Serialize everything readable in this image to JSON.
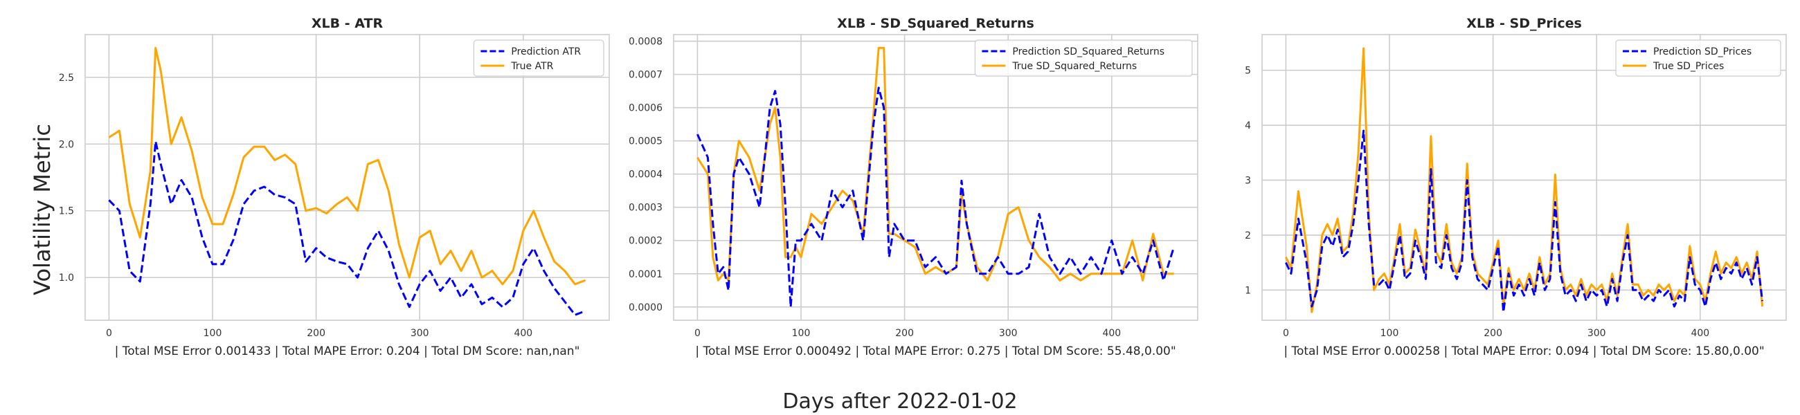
{
  "figure": {
    "ylabel": "Volatility Metric",
    "xlabel": "Days after 2022-01-02"
  },
  "colors": {
    "prediction": "#0000ff",
    "true": "#ffa500"
  },
  "chart_data": [
    {
      "type": "line",
      "title": "XLB - ATR",
      "xlabel": "| Total MSE Error 0.001433 | Total MAPE Error: 0.204 | Total DM Score: nan,nan\"",
      "xlim": [
        -23,
        483
      ],
      "ylim": [
        0.68,
        2.82
      ],
      "xticks": [
        0,
        100,
        200,
        300,
        400
      ],
      "yticks": [
        1.0,
        1.5,
        2.0,
        2.5
      ],
      "ytick_labels": [
        "1.0",
        "1.5",
        "2.0",
        "2.5"
      ],
      "grid": true,
      "legend_position": "top-right",
      "x": [
        0,
        10,
        20,
        30,
        40,
        45,
        50,
        60,
        70,
        80,
        90,
        100,
        110,
        120,
        130,
        140,
        150,
        160,
        170,
        180,
        190,
        200,
        210,
        220,
        230,
        240,
        250,
        260,
        270,
        280,
        290,
        300,
        310,
        320,
        330,
        340,
        350,
        360,
        370,
        380,
        390,
        400,
        410,
        420,
        430,
        440,
        450,
        460
      ],
      "series": [
        {
          "name": "Prediction ATR",
          "style": "dashed",
          "color": "#0000ff",
          "values": [
            1.58,
            1.5,
            1.05,
            0.97,
            1.55,
            2.02,
            1.85,
            1.55,
            1.73,
            1.6,
            1.3,
            1.1,
            1.1,
            1.28,
            1.55,
            1.65,
            1.68,
            1.62,
            1.6,
            1.55,
            1.12,
            1.22,
            1.15,
            1.12,
            1.1,
            1.0,
            1.22,
            1.35,
            1.2,
            0.95,
            0.78,
            0.95,
            1.05,
            0.9,
            1.0,
            0.85,
            0.95,
            0.8,
            0.85,
            0.78,
            0.85,
            1.1,
            1.22,
            1.05,
            0.92,
            0.82,
            0.72,
            0.75
          ]
        },
        {
          "name": "True ATR",
          "style": "solid",
          "color": "#ffa500",
          "values": [
            2.05,
            2.1,
            1.55,
            1.3,
            1.8,
            2.72,
            2.55,
            2.0,
            2.2,
            1.95,
            1.6,
            1.4,
            1.4,
            1.62,
            1.9,
            1.98,
            1.98,
            1.88,
            1.92,
            1.85,
            1.5,
            1.52,
            1.48,
            1.55,
            1.6,
            1.5,
            1.85,
            1.88,
            1.65,
            1.25,
            1.0,
            1.3,
            1.35,
            1.1,
            1.2,
            1.05,
            1.2,
            1.0,
            1.05,
            0.95,
            1.05,
            1.35,
            1.5,
            1.3,
            1.12,
            1.05,
            0.95,
            0.98
          ]
        }
      ]
    },
    {
      "type": "line",
      "title": "XLB - SD_Squared_Returns",
      "xlabel": "| Total MSE Error 0.000492 | Total MAPE Error: 0.275 | Total DM Score: 55.48,0.00\"",
      "xlim": [
        -23,
        483
      ],
      "ylim": [
        -4e-05,
        0.00082
      ],
      "xticks": [
        0,
        100,
        200,
        300,
        400
      ],
      "yticks": [
        0.0,
        0.0001,
        0.0002,
        0.0003,
        0.0004,
        0.0005,
        0.0006,
        0.0007,
        0.0008
      ],
      "ytick_labels": [
        "0.0000",
        "0.0001",
        "0.0002",
        "0.0003",
        "0.0004",
        "0.0005",
        "0.0006",
        "0.0007",
        "0.0008"
      ],
      "grid": true,
      "legend_position": "top-right",
      "x": [
        0,
        10,
        15,
        20,
        25,
        30,
        35,
        40,
        50,
        60,
        70,
        75,
        80,
        85,
        90,
        95,
        100,
        110,
        120,
        130,
        140,
        150,
        160,
        170,
        175,
        180,
        185,
        190,
        200,
        210,
        220,
        230,
        240,
        250,
        255,
        260,
        270,
        280,
        290,
        300,
        310,
        320,
        330,
        340,
        350,
        360,
        370,
        380,
        390,
        400,
        410,
        420,
        430,
        440,
        450,
        460
      ],
      "series": [
        {
          "name": "Prediction SD_Squared_Returns",
          "style": "dashed",
          "color": "#0000ff",
          "values": [
            0.00052,
            0.00045,
            0.00025,
            0.0001,
            0.00012,
            5e-05,
            0.0004,
            0.00045,
            0.0004,
            0.0003,
            0.0006,
            0.00065,
            0.00055,
            0.0003,
            0.0,
            0.0002,
            0.0002,
            0.00025,
            0.0002,
            0.00035,
            0.0003,
            0.00035,
            0.0002,
            0.00055,
            0.00066,
            0.0006,
            0.00015,
            0.00025,
            0.0002,
            0.0002,
            0.00012,
            0.00015,
            0.0001,
            0.00012,
            0.00038,
            0.00025,
            0.0001,
            0.0001,
            0.00015,
            0.0001,
            0.0001,
            0.00012,
            0.00028,
            0.00015,
            0.0001,
            0.00015,
            0.0001,
            0.00015,
            0.0001,
            0.0002,
            0.0001,
            0.00015,
            0.0001,
            0.0002,
            8e-05,
            0.00018
          ]
        },
        {
          "name": "True SD_Squared_Returns",
          "style": "solid",
          "color": "#ffa500",
          "values": [
            0.00045,
            0.0004,
            0.00015,
            8e-05,
            0.0001,
            8e-05,
            0.0004,
            0.0005,
            0.00045,
            0.00035,
            0.00055,
            0.0006,
            0.00045,
            0.00015,
            0.00015,
            0.00018,
            0.00015,
            0.00028,
            0.00025,
            0.0003,
            0.00035,
            0.00032,
            0.00022,
            0.00058,
            0.00078,
            0.00078,
            0.00022,
            0.00022,
            0.0002,
            0.00018,
            0.0001,
            0.00012,
            0.0001,
            0.00012,
            0.00034,
            0.00025,
            0.00012,
            8e-05,
            0.00015,
            0.00028,
            0.0003,
            0.0002,
            0.00015,
            0.00012,
            8e-05,
            0.0001,
            8e-05,
            0.0001,
            0.0001,
            0.0001,
            0.0001,
            0.0002,
            8e-05,
            0.00022,
            0.0001,
            0.0001
          ]
        }
      ]
    },
    {
      "type": "line",
      "title": "XLB - SD_Prices",
      "xlabel": "| Total MSE Error 0.000258 | Total MAPE Error: 0.094 | Total DM Score: 15.80,0.00\"",
      "xlim": [
        -23,
        483
      ],
      "ylim": [
        0.45,
        5.65
      ],
      "xticks": [
        0,
        100,
        200,
        300,
        400
      ],
      "yticks": [
        1,
        2,
        3,
        4,
        5
      ],
      "ytick_labels": [
        "1",
        "2",
        "3",
        "4",
        "5"
      ],
      "grid": true,
      "legend_position": "top-right",
      "x": [
        0,
        5,
        12,
        20,
        25,
        30,
        35,
        40,
        45,
        50,
        55,
        60,
        65,
        70,
        75,
        80,
        85,
        90,
        95,
        100,
        105,
        110,
        115,
        120,
        125,
        130,
        135,
        140,
        145,
        150,
        155,
        160,
        165,
        170,
        175,
        180,
        185,
        190,
        195,
        200,
        205,
        210,
        215,
        220,
        225,
        230,
        235,
        240,
        245,
        250,
        255,
        260,
        265,
        270,
        275,
        280,
        285,
        290,
        295,
        300,
        305,
        310,
        315,
        320,
        325,
        330,
        335,
        340,
        345,
        350,
        355,
        360,
        365,
        370,
        375,
        380,
        385,
        390,
        395,
        400,
        405,
        410,
        415,
        420,
        425,
        430,
        435,
        440,
        445,
        450,
        455,
        460
      ],
      "series": [
        {
          "name": "Prediction SD_Prices",
          "style": "dashed",
          "color": "#0000ff",
          "values": [
            1.5,
            1.3,
            2.3,
            1.5,
            0.7,
            1.0,
            1.8,
            2.0,
            1.8,
            2.1,
            1.6,
            1.7,
            2.2,
            3.0,
            3.9,
            2.2,
            1.1,
            1.1,
            1.2,
            1.0,
            1.5,
            2.0,
            1.2,
            1.3,
            1.9,
            1.6,
            1.2,
            3.2,
            1.5,
            1.4,
            2.0,
            1.4,
            1.2,
            1.5,
            3.0,
            1.6,
            1.2,
            1.1,
            1.0,
            1.4,
            1.8,
            0.6,
            1.3,
            0.9,
            1.1,
            0.9,
            1.2,
            0.9,
            1.5,
            1.0,
            1.2,
            2.6,
            1.3,
            0.9,
            1.0,
            0.8,
            1.1,
            0.8,
            1.0,
            0.9,
            1.0,
            0.7,
            1.2,
            0.8,
            1.5,
            2.0,
            1.0,
            1.0,
            0.8,
            0.9,
            0.8,
            1.0,
            0.9,
            1.0,
            0.7,
            0.9,
            0.8,
            1.6,
            1.1,
            1.0,
            0.7,
            1.2,
            1.5,
            1.2,
            1.4,
            1.3,
            1.5,
            1.2,
            1.4,
            1.1,
            1.6,
            0.8
          ]
        },
        {
          "name": "True SD_Prices",
          "style": "solid",
          "color": "#ffa500",
          "values": [
            1.6,
            1.4,
            2.8,
            1.8,
            0.6,
            1.1,
            2.0,
            2.2,
            2.0,
            2.3,
            1.7,
            1.8,
            2.4,
            3.5,
            5.4,
            2.4,
            1.0,
            1.2,
            1.3,
            1.1,
            1.6,
            2.2,
            1.3,
            1.4,
            2.1,
            1.7,
            1.3,
            3.8,
            1.7,
            1.5,
            2.2,
            1.5,
            1.3,
            1.6,
            3.3,
            1.7,
            1.3,
            1.2,
            1.1,
            1.5,
            1.9,
            0.7,
            1.4,
            1.0,
            1.2,
            1.0,
            1.3,
            1.0,
            1.6,
            1.1,
            1.3,
            3.1,
            1.4,
            1.0,
            1.1,
            0.9,
            1.2,
            0.9,
            1.1,
            1.0,
            1.1,
            0.8,
            1.3,
            0.9,
            1.6,
            2.2,
            1.1,
            1.1,
            0.9,
            1.0,
            0.9,
            1.1,
            1.0,
            1.1,
            0.8,
            1.0,
            0.9,
            1.8,
            1.2,
            1.1,
            0.8,
            1.3,
            1.7,
            1.3,
            1.5,
            1.4,
            1.6,
            1.3,
            1.5,
            1.2,
            1.7,
            0.7
          ]
        }
      ]
    }
  ]
}
